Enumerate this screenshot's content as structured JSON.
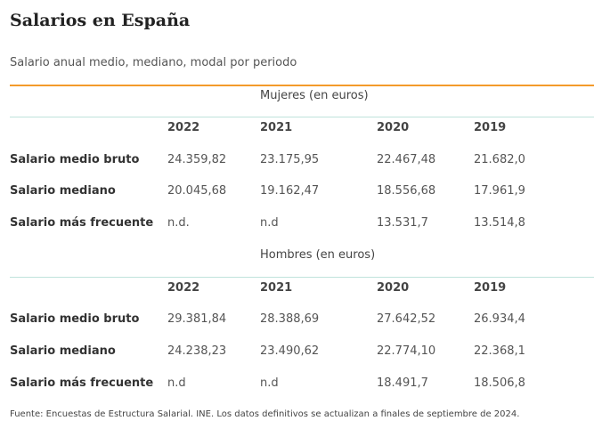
{
  "title": "Salarios en España",
  "subtitle": "Salario anual medio, mediano, modal por periodo",
  "sections": [
    {
      "heading": "Mujeres (en euros)",
      "years": [
        "2022",
        "2021",
        "2020",
        "2019"
      ],
      "rows": [
        {
          "label": "Salario medio bruto",
          "values": [
            "24.359,82",
            "23.175,95",
            "22.467,48",
            "21.682,0"
          ]
        },
        {
          "label": "Salario mediano",
          "values": [
            "20.045,68",
            "19.162,47",
            "18.556,68",
            "17.961,9"
          ]
        },
        {
          "label": "Salario más frecuente",
          "values": [
            "n.d.",
            "n.d",
            "13.531,7",
            "13.514,8"
          ]
        }
      ]
    },
    {
      "heading": "Hombres (en euros)",
      "years": [
        "2022",
        "2021",
        "2020",
        "2019"
      ],
      "rows": [
        {
          "label": "Salario medio bruto",
          "values": [
            "29.381,84",
            "28.388,69",
            "27.642,52",
            "26.934,4"
          ]
        },
        {
          "label": "Salario mediano",
          "values": [
            "24.238,23",
            "23.490,62",
            "22.774,10",
            "22.368,1"
          ]
        },
        {
          "label": "Salario más frecuente",
          "values": [
            "n.d",
            "n.d",
            "18.491,7",
            "18.506,8"
          ]
        }
      ]
    }
  ],
  "source": "Fuente: Encuestas de Estructura Salarial. INE. Los datos definitivos se actualizan a finales de septiembre de 2024.",
  "colors": {
    "accent_rule": "#f39a2b",
    "section_rule": "#bfe3dc"
  }
}
